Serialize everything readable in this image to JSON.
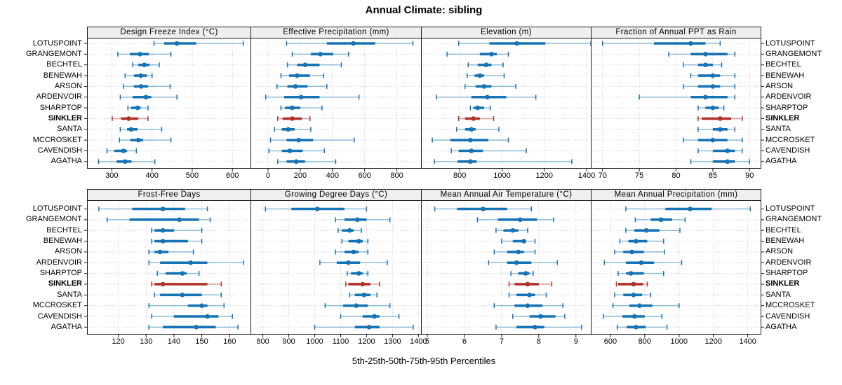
{
  "title": "Annual Climate: sibling",
  "caption": "5th-25th-50th-75th-95th Percentiles",
  "colors": {
    "series_blue": "#1673B4",
    "highlight_red": "#B0332B",
    "strip_bg": "#EFEFEF",
    "grid": "#CCCCCC",
    "border": "#1A1A1A"
  },
  "chart_data": {
    "type": "scatter",
    "variant": "trellis-percentile-dotplot",
    "grid": "dotted",
    "legend_position": "none",
    "percentiles": [
      "5th",
      "25th",
      "50th",
      "75th",
      "95th"
    ],
    "stations": [
      "LOTUSPOINT",
      "GRANGEMONT",
      "BECHTEL",
      "BENEWAH",
      "ARSON",
      "ARDENVOIR",
      "SHARPTOP",
      "SINKLER",
      "SANTA",
      "MCCROSKET",
      "CAVENDISH",
      "AGATHA"
    ],
    "highlight_station": "SINKLER",
    "panels": [
      {
        "title": "Design Freeze Index (°C)",
        "row": 0,
        "col": 0,
        "xlim": [
          240,
          645
        ],
        "ticks": [
          300,
          400,
          500,
          600
        ],
        "values": [
          [
            405,
            430,
            462,
            510,
            627
          ],
          [
            315,
            345,
            370,
            392,
            447
          ],
          [
            352,
            366,
            381,
            394,
            418
          ],
          [
            333,
            355,
            372,
            387,
            400
          ],
          [
            329,
            355,
            373,
            390,
            445
          ],
          [
            321,
            352,
            385,
            398,
            462
          ],
          [
            340,
            348,
            364,
            372,
            390
          ],
          [
            301,
            323,
            342,
            366,
            390
          ],
          [
            321,
            338,
            348,
            364,
            424
          ],
          [
            319,
            346,
            366,
            378,
            447
          ],
          [
            288,
            306,
            329,
            338,
            361
          ],
          [
            267,
            312,
            333,
            349,
            407
          ]
        ]
      },
      {
        "title": "Effective Precipitation (mm)",
        "row": 0,
        "col": 1,
        "xlim": [
          -105,
          950
        ],
        "ticks": [
          0,
          200,
          400,
          600,
          800
        ],
        "values": [
          [
            115,
            365,
            530,
            665,
            900
          ],
          [
            150,
            265,
            325,
            405,
            500
          ],
          [
            120,
            180,
            230,
            320,
            455
          ],
          [
            80,
            130,
            180,
            260,
            345
          ],
          [
            55,
            120,
            170,
            245,
            365
          ],
          [
            -15,
            100,
            205,
            320,
            565
          ],
          [
            80,
            105,
            150,
            200,
            335
          ],
          [
            60,
            90,
            150,
            210,
            260
          ],
          [
            40,
            85,
            125,
            165,
            265
          ],
          [
            15,
            115,
            190,
            280,
            535
          ],
          [
            5,
            85,
            135,
            215,
            350
          ],
          [
            60,
            115,
            175,
            230,
            420
          ]
        ]
      },
      {
        "title": "Elevation (m)",
        "row": 0,
        "col": 2,
        "xlim": [
          620,
          1420
        ],
        "ticks": [
          800,
          1000,
          1200,
          1400
        ],
        "values": [
          [
            795,
            940,
            1070,
            1205,
            1420
          ],
          [
            740,
            895,
            950,
            975,
            1030
          ],
          [
            840,
            885,
            925,
            950,
            1005
          ],
          [
            835,
            870,
            895,
            915,
            1010
          ],
          [
            825,
            875,
            915,
            950,
            1065
          ],
          [
            690,
            855,
            930,
            1020,
            1160
          ],
          [
            850,
            865,
            885,
            915,
            945
          ],
          [
            795,
            825,
            865,
            895,
            960
          ],
          [
            785,
            825,
            855,
            875,
            985
          ],
          [
            670,
            755,
            850,
            935,
            1030
          ],
          [
            760,
            795,
            855,
            910,
            1115
          ],
          [
            680,
            790,
            850,
            880,
            1330
          ]
        ]
      },
      {
        "title": "Fraction of Annual PPT as Rain",
        "row": 0,
        "col": 3,
        "xlim": [
          68.5,
          91.5
        ],
        "ticks": [
          70,
          75,
          80,
          85,
          90
        ],
        "values": [
          [
            70,
            77,
            82,
            84,
            86
          ],
          [
            79,
            82,
            84,
            87,
            88
          ],
          [
            81,
            83,
            84,
            85,
            86.2
          ],
          [
            82,
            83,
            85,
            86,
            88
          ],
          [
            81,
            83,
            85,
            86,
            88
          ],
          [
            75,
            82,
            84,
            87,
            88
          ],
          [
            83,
            84,
            85,
            85.8,
            86.5
          ],
          [
            83,
            83.5,
            86,
            87.5,
            89
          ],
          [
            83,
            85,
            86,
            87,
            88
          ],
          [
            81,
            83,
            85,
            87,
            89
          ],
          [
            83,
            85,
            87,
            88,
            89
          ],
          [
            82,
            85,
            87,
            88,
            90
          ]
        ]
      },
      {
        "title": "Frost-Free Days",
        "row": 1,
        "col": 0,
        "xlim": [
          109,
          167.5
        ],
        "ticks": [
          120,
          130,
          140,
          150,
          160
        ],
        "values": [
          [
            113,
            125,
            136,
            144,
            152
          ],
          [
            116,
            124,
            142,
            149,
            153
          ],
          [
            132,
            133,
            136,
            140,
            150
          ],
          [
            132,
            133,
            136,
            145,
            150
          ],
          [
            131,
            133,
            135,
            138,
            147
          ],
          [
            131,
            135,
            146,
            152,
            165
          ],
          [
            134,
            137,
            143,
            144.5,
            149
          ],
          [
            132,
            133,
            136,
            152,
            157
          ],
          [
            133,
            135,
            143,
            150,
            157
          ],
          [
            131,
            145,
            150,
            152,
            158
          ],
          [
            132,
            140,
            152,
            156,
            161
          ],
          [
            131,
            136,
            148,
            155,
            163
          ]
        ]
      },
      {
        "title": "Growing Degree Days (°C)",
        "row": 1,
        "col": 1,
        "xlim": [
          755,
          1410
        ],
        "ticks": [
          800,
          900,
          1000,
          1100,
          1200,
          1300,
          1400
        ],
        "values": [
          [
            810,
            910,
            1010,
            1115,
            1200
          ],
          [
            1080,
            1115,
            1165,
            1200,
            1290
          ],
          [
            1090,
            1105,
            1135,
            1150,
            1180
          ],
          [
            1105,
            1130,
            1170,
            1185,
            1205
          ],
          [
            1080,
            1115,
            1150,
            1170,
            1205
          ],
          [
            1020,
            1085,
            1130,
            1175,
            1280
          ],
          [
            1125,
            1140,
            1170,
            1185,
            1205
          ],
          [
            1120,
            1130,
            1185,
            1215,
            1250
          ],
          [
            1135,
            1155,
            1190,
            1215,
            1240
          ],
          [
            1040,
            1110,
            1160,
            1205,
            1290
          ],
          [
            1100,
            1185,
            1230,
            1250,
            1325
          ],
          [
            1000,
            1155,
            1210,
            1250,
            1380
          ]
        ]
      },
      {
        "title": "Mean Annual Air Temperature (°C)",
        "row": 1,
        "col": 2,
        "xlim": [
          4.85,
          9.4
        ],
        "ticks": [
          5,
          6,
          7,
          8,
          9
        ],
        "values": [
          [
            5.2,
            5.8,
            6.5,
            7.15,
            7.8
          ],
          [
            6.35,
            6.9,
            7.5,
            7.95,
            8.4
          ],
          [
            6.85,
            7.05,
            7.3,
            7.45,
            7.7
          ],
          [
            7.0,
            7.3,
            7.6,
            7.65,
            7.9
          ],
          [
            6.8,
            7.15,
            7.45,
            7.6,
            7.9
          ],
          [
            6.65,
            7.15,
            7.4,
            7.8,
            8.5
          ],
          [
            7.25,
            7.45,
            7.65,
            7.75,
            7.85
          ],
          [
            7.2,
            7.35,
            7.7,
            8.0,
            8.35
          ],
          [
            7.2,
            7.4,
            7.75,
            7.9,
            8.2
          ],
          [
            6.8,
            7.35,
            7.7,
            8.1,
            8.65
          ],
          [
            7.3,
            7.75,
            8.05,
            8.45,
            8.7
          ],
          [
            6.85,
            7.4,
            7.9,
            8.15,
            9.15
          ]
        ]
      },
      {
        "title": "Mean Annual Precipitation (mm)",
        "row": 1,
        "col": 3,
        "xlim": [
          490,
          1475
        ],
        "ticks": [
          600,
          800,
          1000,
          1200,
          1400
        ],
        "values": [
          [
            690,
            920,
            1065,
            1190,
            1415
          ],
          [
            745,
            835,
            895,
            960,
            1035
          ],
          [
            690,
            740,
            810,
            885,
            1005
          ],
          [
            655,
            705,
            750,
            815,
            910
          ],
          [
            625,
            675,
            725,
            795,
            915
          ],
          [
            565,
            690,
            780,
            855,
            1015
          ],
          [
            645,
            690,
            720,
            795,
            910
          ],
          [
            635,
            645,
            735,
            790,
            815
          ],
          [
            625,
            675,
            735,
            785,
            835
          ],
          [
            615,
            710,
            770,
            845,
            1000
          ],
          [
            560,
            670,
            740,
            800,
            900
          ],
          [
            640,
            695,
            750,
            805,
            930
          ]
        ]
      }
    ]
  }
}
